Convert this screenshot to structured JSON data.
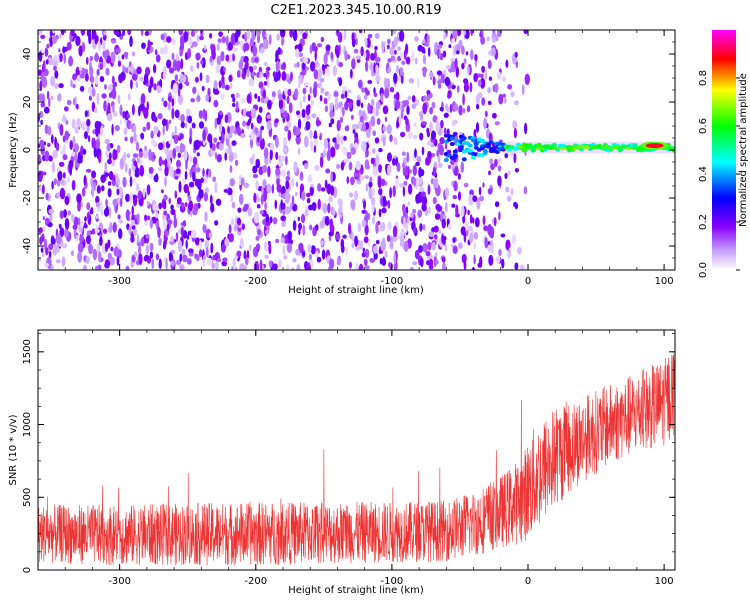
{
  "title": "C2E1.2023.345.10.00.R19",
  "chart_data": [
    {
      "type": "heatmap",
      "xlabel": "Height of straight line (km)",
      "ylabel": "Frequency (Hz)",
      "xlim": [
        -360,
        108
      ],
      "ylim": [
        -50,
        50
      ],
      "xticks": [
        -300,
        -200,
        -100,
        0,
        100
      ],
      "yticks": [
        -40,
        -20,
        0,
        20,
        40
      ],
      "grid": false,
      "colormap": [
        "#ff00ff",
        "#ff0000",
        "#ffff00",
        "#00ff00",
        "#00ffff",
        "#0000ff",
        "#8800ff",
        "#ffffff"
      ],
      "noise_region": {
        "x_range": [
          -360,
          -15
        ],
        "frequency_range": [
          -50,
          50
        ],
        "typical_amplitude": 0.15,
        "color": "#7b00ff"
      },
      "signal_band": {
        "x_range": [
          -60,
          108
        ],
        "frequency": 1,
        "peak_amplitude": 0.9,
        "peak_x": 93
      },
      "colorbar": {
        "label": "Normalized spectral amplitude",
        "range": [
          0,
          1
        ],
        "ticks": [
          0.0,
          0.2,
          0.4,
          0.6,
          0.8
        ]
      }
    },
    {
      "type": "line",
      "xlabel": "Height of straight line (km)",
      "ylabel": "SNR (10 * v/v)",
      "xlim": [
        -360,
        108
      ],
      "ylim": [
        0,
        1650
      ],
      "xticks": [
        -300,
        -200,
        -100,
        0,
        100
      ],
      "yticks": [
        0,
        500,
        1000,
        1500
      ],
      "grid": false,
      "color": "#ee3333",
      "envelope": [
        {
          "x": -360,
          "median": 250,
          "spread": 200
        },
        {
          "x": -300,
          "median": 240,
          "spread": 210
        },
        {
          "x": -200,
          "median": 250,
          "spread": 220
        },
        {
          "x": -100,
          "median": 260,
          "spread": 210
        },
        {
          "x": -60,
          "median": 270,
          "spread": 210
        },
        {
          "x": -40,
          "median": 320,
          "spread": 230
        },
        {
          "x": -20,
          "median": 400,
          "spread": 250
        },
        {
          "x": -5,
          "median": 480,
          "spread": 300
        },
        {
          "x": 5,
          "median": 620,
          "spread": 380
        },
        {
          "x": 20,
          "median": 780,
          "spread": 350
        },
        {
          "x": 40,
          "median": 900,
          "spread": 300
        },
        {
          "x": 60,
          "median": 1000,
          "spread": 280
        },
        {
          "x": 80,
          "median": 1080,
          "spread": 280
        },
        {
          "x": 100,
          "median": 1150,
          "spread": 300
        },
        {
          "x": 108,
          "median": 1250,
          "spread": 320
        }
      ],
      "max_value": 1650,
      "min_value": 0
    }
  ]
}
